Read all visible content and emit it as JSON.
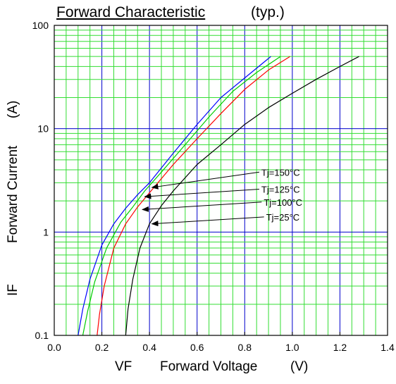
{
  "chart_data": {
    "type": "line",
    "title": "Forward Characteristic",
    "subtitle": "(typ.)",
    "xlabel_symbol": "VF",
    "xlabel": "Forward Voltage",
    "xlabel_unit": "(V)",
    "ylabel_symbol": "IF",
    "ylabel": "Forward Current",
    "ylabel_unit": "(A)",
    "xlim": [
      0.0,
      1.4
    ],
    "ylim": [
      0.1,
      100
    ],
    "y_scale": "log",
    "grid": true,
    "x_ticks": [
      "0.0",
      "0.2",
      "0.4",
      "0.6",
      "0.8",
      "1.0",
      "1.2",
      "1.4"
    ],
    "y_ticks": [
      "0.1",
      "1",
      "10",
      "100"
    ],
    "series": [
      {
        "name": "Tj=150°C",
        "color": "#0000ff",
        "points": [
          [
            0.1,
            0.1
          ],
          [
            0.12,
            0.18
          ],
          [
            0.15,
            0.35
          ],
          [
            0.2,
            0.75
          ],
          [
            0.25,
            1.2
          ],
          [
            0.3,
            1.7
          ],
          [
            0.35,
            2.3
          ],
          [
            0.4,
            3.0
          ],
          [
            0.5,
            5.8
          ],
          [
            0.6,
            11.0
          ],
          [
            0.7,
            20.0
          ],
          [
            0.8,
            31.0
          ],
          [
            0.91,
            50.0
          ]
        ]
      },
      {
        "name": "Tj=125°C",
        "color": "#00cc00",
        "points": [
          [
            0.12,
            0.1
          ],
          [
            0.14,
            0.17
          ],
          [
            0.17,
            0.33
          ],
          [
            0.22,
            0.7
          ],
          [
            0.28,
            1.25
          ],
          [
            0.33,
            1.75
          ],
          [
            0.38,
            2.5
          ],
          [
            0.45,
            3.8
          ],
          [
            0.55,
            7.0
          ],
          [
            0.65,
            13.0
          ],
          [
            0.75,
            23.0
          ],
          [
            0.85,
            35.0
          ],
          [
            0.95,
            50.0
          ]
        ]
      },
      {
        "name": "Tj=100°C",
        "color": "#ff0000",
        "points": [
          [
            0.18,
            0.1
          ],
          [
            0.19,
            0.16
          ],
          [
            0.21,
            0.3
          ],
          [
            0.25,
            0.7
          ],
          [
            0.3,
            1.2
          ],
          [
            0.35,
            1.75
          ],
          [
            0.4,
            2.4
          ],
          [
            0.5,
            4.5
          ],
          [
            0.6,
            8.0
          ],
          [
            0.7,
            14.0
          ],
          [
            0.8,
            24.0
          ],
          [
            0.9,
            37.0
          ],
          [
            0.99,
            50.0
          ]
        ]
      },
      {
        "name": "Tj=25°C",
        "color": "#000000",
        "points": [
          [
            0.3,
            0.1
          ],
          [
            0.31,
            0.18
          ],
          [
            0.33,
            0.35
          ],
          [
            0.36,
            0.7
          ],
          [
            0.4,
            1.2
          ],
          [
            0.45,
            1.8
          ],
          [
            0.5,
            2.5
          ],
          [
            0.6,
            4.5
          ],
          [
            0.7,
            7.0
          ],
          [
            0.8,
            11.0
          ],
          [
            0.9,
            16.0
          ],
          [
            1.0,
            22.0
          ],
          [
            1.1,
            30.0
          ],
          [
            1.2,
            40.0
          ],
          [
            1.28,
            50.0
          ]
        ]
      }
    ],
    "annotations": [
      {
        "label": "Tj=150°C",
        "text_at": [
          0.87,
          3.8
        ],
        "arrow_to": [
          0.41,
          2.7
        ]
      },
      {
        "label": "Tj=125°C",
        "text_at": [
          0.87,
          2.6
        ],
        "arrow_to": [
          0.38,
          2.2
        ]
      },
      {
        "label": "Tj=100°C",
        "text_at": [
          0.88,
          1.95
        ],
        "arrow_to": [
          0.37,
          1.65
        ]
      },
      {
        "label": "Tj=25°C",
        "text_at": [
          0.89,
          1.4
        ],
        "arrow_to": [
          0.41,
          1.2
        ]
      }
    ]
  }
}
